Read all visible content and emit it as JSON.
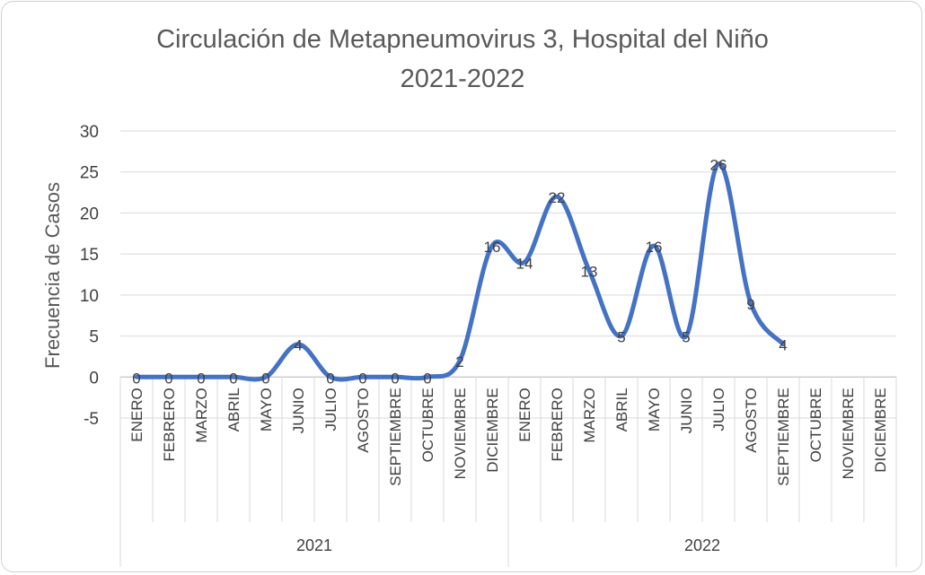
{
  "chart_data": {
    "type": "line",
    "title_line1": "Circulación de Metapneumovirus 3, Hospital del Niño",
    "title_line2": "2021-2022",
    "ylabel": "Frecuencia de Casos",
    "xlabel": "",
    "ylim": [
      -5,
      30
    ],
    "yticks": [
      "-5",
      "0",
      "5",
      "10",
      "15",
      "20",
      "25",
      "30"
    ],
    "ytick_values": [
      -5,
      0,
      5,
      10,
      15,
      20,
      25,
      30
    ],
    "grid": true,
    "legend": "none",
    "line_color": "#4472C4",
    "groups": [
      {
        "name": "2021",
        "categories": [
          "ENERO",
          "FEBRERO",
          "MARZO",
          "ABRIL",
          "MAYO",
          "JUNIO",
          "JULIO",
          "AGOSTO",
          "SEPTIEMBRE",
          "OCTUBRE",
          "NOVIEMBRE",
          "DICIEMBRE"
        ]
      },
      {
        "name": "2022",
        "categories": [
          "ENERO",
          "FEBRERO",
          "MARZO",
          "ABRIL",
          "MAYO",
          "JUNIO",
          "JULIO",
          "AGOSTO",
          "SEPTIEMBRE",
          "OCTUBRE",
          "NOVIEMBRE",
          "DICIEMBRE"
        ]
      }
    ],
    "values": [
      0,
      0,
      0,
      0,
      0,
      4,
      0,
      0,
      0,
      0,
      2,
      16,
      14,
      22,
      13,
      5,
      16,
      5,
      26,
      9,
      4
    ],
    "data_labels": [
      "0",
      "0",
      "0",
      "0",
      "0",
      "4",
      "0",
      "0",
      "0",
      "0",
      "2",
      "16",
      "14",
      "22",
      "13",
      "5",
      "16",
      "5",
      "26",
      "9",
      "4"
    ]
  }
}
